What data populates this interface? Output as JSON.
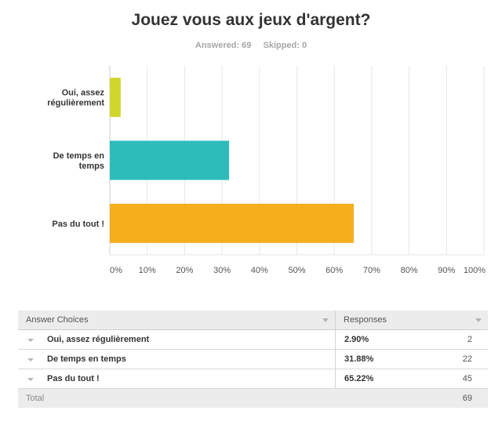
{
  "header": {
    "title": "Jouez vous aux jeux d'argent?",
    "answered": "Answered: 69",
    "skipped": "Skipped: 0"
  },
  "colors": {
    "series": [
      "#d0d62c",
      "#2ebcbb",
      "#f7ae1d"
    ],
    "grid": "#e6e6e6",
    "axis": "#cccccc"
  },
  "chart_data": {
    "type": "bar",
    "orientation": "horizontal",
    "categories": [
      "Oui, assez\nrégulièrement",
      "De temps en\ntemps",
      "Pas du tout !"
    ],
    "values": [
      2.9,
      31.88,
      65.22
    ],
    "xlim": [
      0,
      100
    ],
    "xticks": [
      "0%",
      "10%",
      "20%",
      "30%",
      "40%",
      "50%",
      "60%",
      "70%",
      "80%",
      "90%",
      "100%"
    ],
    "grid": true
  },
  "table": {
    "headers": [
      "Answer Choices",
      "Responses"
    ],
    "rows": [
      {
        "choice": "Oui, assez régulièrement",
        "percent": "2.90%",
        "count": "2"
      },
      {
        "choice": "De temps en temps",
        "percent": "31.88%",
        "count": "22"
      },
      {
        "choice": "Pas du tout !",
        "percent": "65.22%",
        "count": "45"
      }
    ],
    "total_label": "Total",
    "total_value": "69"
  }
}
